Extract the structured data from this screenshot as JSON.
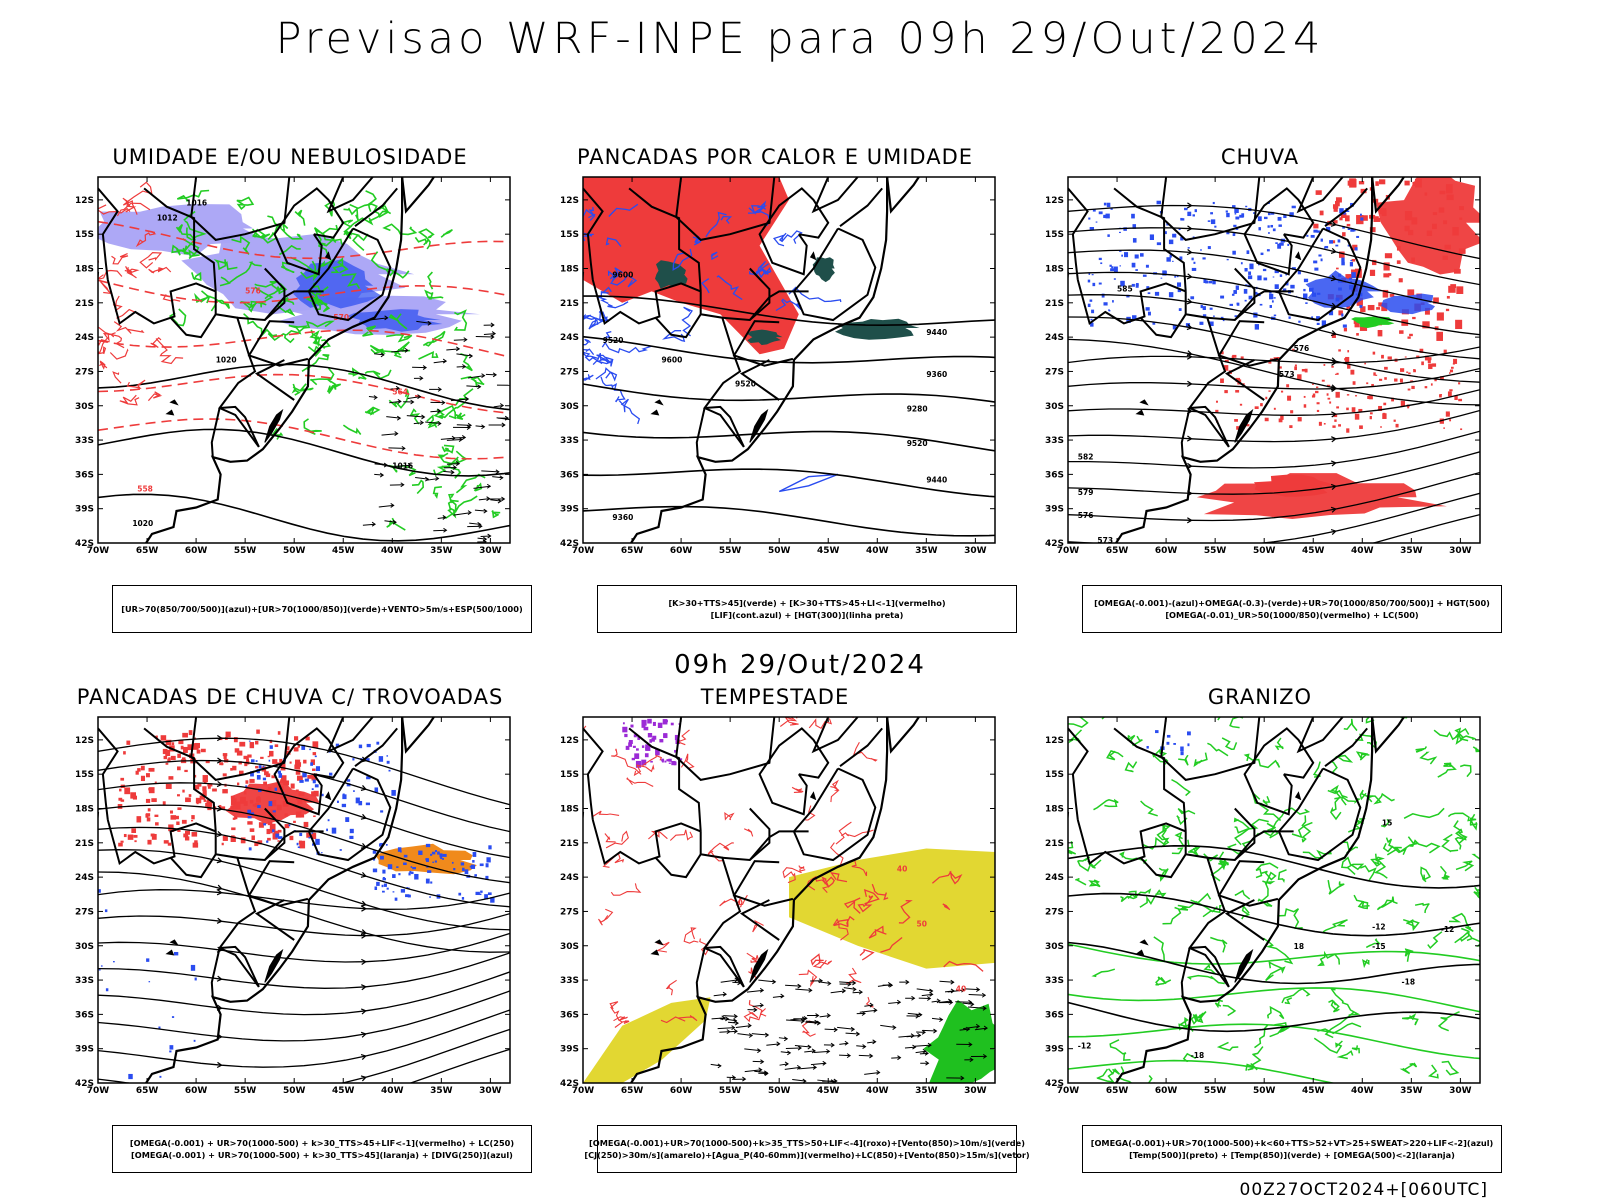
{
  "main_title": "Previsao WRF-INPE  para 09h 29/Out/2024",
  "mid_title": "09h 29/Out/2024",
  "footer": "00Z27OCT2024+[060UTC]",
  "axes": {
    "lat_labels": [
      "12S",
      "15S",
      "18S",
      "21S",
      "24S",
      "27S",
      "30S",
      "33S",
      "36S",
      "39S",
      "42S"
    ],
    "lon_labels": [
      "70W",
      "65W",
      "60W",
      "55W",
      "50W",
      "45W",
      "40W",
      "35W",
      "30W"
    ]
  },
  "colors": {
    "red": "#ee3b3b",
    "blue": "#2a4cf0",
    "green": "#22cc22",
    "lavender": "#a9a3f5",
    "darkteal": "#1f4f4a",
    "orange": "#f08a1c",
    "yellow": "#e2d732",
    "purple": "#9b2ad6"
  },
  "panels": [
    {
      "title": "UMIDADE E/OU NEBULOSIDADE",
      "legend": [
        "[UR>70(850/700/500)](azul)+[UR>70(1000/850)](verde)+VENTO>5m/s+ESP(500/1000)"
      ],
      "contour_labels": [
        "1016",
        "1012",
        "1020",
        "576",
        "570",
        "564",
        "558",
        "1016",
        "1020"
      ]
    },
    {
      "title": "PANCADAS POR CALOR E UMIDADE",
      "legend": [
        "[K>30+TTS>45](verde) + [K>30+TTS>45+LI<-1](vermelho)",
        "[LIF](cont.azul) + [HGT(300)](linha preta)"
      ],
      "contour_labels": [
        "9600",
        "9520",
        "9600",
        "9520",
        "9440",
        "9360",
        "9280",
        "9520",
        "9440",
        "9360"
      ]
    },
    {
      "title": "CHUVA",
      "legend": [
        "[OMEGA(-0.001)-(azul)+OMEGA(-0.3)-(verde)+UR>70(1000/850/700/500)] + HGT(500)",
        "[OMEGA(-0.01)_UR>50(1000/850)(vermelho) + LC(500)"
      ],
      "contour_labels": [
        "585",
        "582",
        "579",
        "576",
        "573",
        "576",
        "573"
      ]
    },
    {
      "title": "PANCADAS DE CHUVA C/ TROVOADAS",
      "legend": [
        "[OMEGA(-0.001) + UR>70(1000-500) + k>30_TTS>45+LIF<-1](vermelho) + LC(250)",
        "[OMEGA(-0.001) + UR>70(1000-500) + k>30_TTS>45](laranja) + [DIVG(250)](azul)"
      ],
      "contour_labels": []
    },
    {
      "title": "TEMPESTADE",
      "legend": [
        "[OMEGA(-0.001)+UR>70(1000-500)+k>35_TTS>50+LIF<-4](roxo)+[Vento(850)>10m/s](verde)",
        "[CJ(250)>30m/s](amarelo)+[Agua_P(40-60mm)](vermelho)+LC(850)+[Vento(850)>15m/s](vetor)"
      ],
      "contour_labels": [
        "40",
        "50",
        "40"
      ]
    },
    {
      "title": "GRANIZO",
      "legend": [
        "[OMEGA(-0.001)+UR>70(1000-500)+k<60+TTS>52+VT>25+SWEAT>220+LIF<-2](azul)",
        "[Temp(500)](preto) + [Temp(850)](verde) + [OMEGA(500)<-2](laranja)"
      ],
      "contour_labels": [
        "-12",
        "-15",
        "-18",
        "-12",
        "-18",
        "-12",
        "15",
        "18"
      ]
    }
  ]
}
